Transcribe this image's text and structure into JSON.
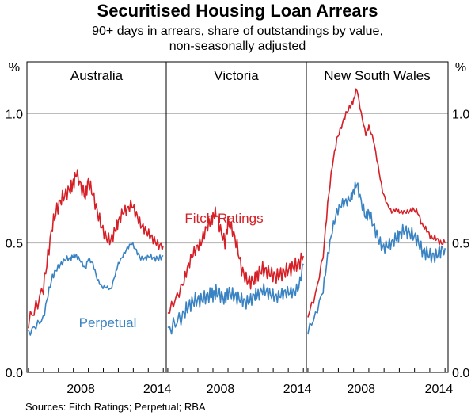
{
  "title": "Securitised Housing Loan Arrears",
  "subtitle_line1": "90+ days in arrears, share of outstandings by value,",
  "subtitle_line2": "non-seasonally adjusted",
  "source": "Sources: Fitch Ratings; Perpetual; RBA",
  "colors": {
    "fitch": "#d62027",
    "perpetual": "#3a83c3",
    "grid": "#b3b3b3",
    "axis": "#000000"
  },
  "chart_data": {
    "type": "line",
    "y_unit_label": "%",
    "ylim": [
      0,
      1.2
    ],
    "y_ticks": [
      "0.0",
      "0.5",
      "1.0"
    ],
    "y_tick_values": [
      0,
      0.5,
      1.0
    ],
    "xlim": [
      2004.9,
      2014.2
    ],
    "x_ticks": [
      "2008",
      "2014"
    ],
    "x_tick_values": [
      2008,
      2014
    ],
    "series_labels": [
      {
        "name": "Fitch Ratings",
        "panel": 1
      },
      {
        "name": "Perpetual",
        "panel": 0
      }
    ],
    "panels": [
      {
        "name": "Australia",
        "series": [
          {
            "name": "Fitch Ratings",
            "x": [
              2005.0,
              2005.5,
              2006.0,
              2006.3,
              2006.6,
              2006.9,
              2007.2,
              2007.5,
              2007.8,
              2008.0,
              2008.2,
              2008.5,
              2008.8,
              2009.0,
              2009.3,
              2009.6,
              2009.9,
              2010.2,
              2010.5,
              2010.8,
              2011.0,
              2011.3,
              2011.6,
              2011.9,
              2012.2,
              2012.5,
              2012.8,
              2013.1,
              2013.4,
              2013.7,
              2014.0
            ],
            "values": [
              0.2,
              0.25,
              0.33,
              0.45,
              0.57,
              0.63,
              0.67,
              0.69,
              0.71,
              0.73,
              0.77,
              0.72,
              0.68,
              0.74,
              0.69,
              0.62,
              0.56,
              0.52,
              0.51,
              0.55,
              0.58,
              0.62,
              0.63,
              0.65,
              0.61,
              0.57,
              0.55,
              0.53,
              0.51,
              0.49,
              0.49
            ]
          },
          {
            "name": "Perpetual",
            "x": [
              2005.0,
              2005.5,
              2006.0,
              2006.3,
              2006.6,
              2006.9,
              2007.2,
              2007.5,
              2007.8,
              2008.0,
              2008.2,
              2008.5,
              2008.8,
              2009.0,
              2009.3,
              2009.6,
              2009.9,
              2010.2,
              2010.5,
              2010.8,
              2011.0,
              2011.3,
              2011.6,
              2011.9,
              2012.2,
              2012.5,
              2012.8,
              2013.1,
              2013.4,
              2013.7,
              2014.0
            ],
            "values": [
              0.15,
              0.18,
              0.21,
              0.3,
              0.37,
              0.4,
              0.42,
              0.44,
              0.44,
              0.45,
              0.45,
              0.43,
              0.4,
              0.44,
              0.42,
              0.36,
              0.33,
              0.33,
              0.32,
              0.38,
              0.42,
              0.45,
              0.48,
              0.5,
              0.47,
              0.44,
              0.44,
              0.45,
              0.44,
              0.44,
              0.45
            ]
          }
        ]
      },
      {
        "name": "Victoria",
        "series": [
          {
            "name": "Fitch Ratings",
            "x": [
              2005.0,
              2005.5,
              2006.0,
              2006.3,
              2006.6,
              2006.9,
              2007.2,
              2007.5,
              2007.8,
              2008.0,
              2008.2,
              2008.5,
              2008.8,
              2009.0,
              2009.3,
              2009.6,
              2009.9,
              2010.2,
              2010.5,
              2010.8,
              2011.0,
              2011.3,
              2011.6,
              2011.9,
              2012.2,
              2012.5,
              2012.8,
              2013.1,
              2013.4,
              2013.7,
              2014.0
            ],
            "values": [
              0.23,
              0.28,
              0.34,
              0.4,
              0.45,
              0.48,
              0.5,
              0.55,
              0.58,
              0.6,
              0.62,
              0.55,
              0.5,
              0.58,
              0.55,
              0.49,
              0.4,
              0.36,
              0.35,
              0.36,
              0.38,
              0.4,
              0.39,
              0.38,
              0.37,
              0.38,
              0.39,
              0.4,
              0.41,
              0.42,
              0.45
            ]
          },
          {
            "name": "Perpetual",
            "x": [
              2005.0,
              2005.5,
              2006.0,
              2006.3,
              2006.6,
              2006.9,
              2007.2,
              2007.5,
              2007.8,
              2008.0,
              2008.2,
              2008.5,
              2008.8,
              2009.0,
              2009.3,
              2009.6,
              2009.9,
              2010.2,
              2010.5,
              2010.8,
              2011.0,
              2011.3,
              2011.6,
              2011.9,
              2012.2,
              2012.5,
              2012.8,
              2013.1,
              2013.4,
              2013.7,
              2014.0
            ],
            "values": [
              0.16,
              0.19,
              0.22,
              0.25,
              0.27,
              0.28,
              0.28,
              0.29,
              0.3,
              0.3,
              0.31,
              0.3,
              0.28,
              0.31,
              0.3,
              0.29,
              0.28,
              0.27,
              0.28,
              0.3,
              0.3,
              0.32,
              0.31,
              0.3,
              0.29,
              0.3,
              0.31,
              0.31,
              0.31,
              0.33,
              0.42
            ]
          }
        ]
      },
      {
        "name": "New South Wales",
        "series": [
          {
            "name": "Fitch Ratings",
            "x": [
              2005.0,
              2005.5,
              2006.0,
              2006.3,
              2006.6,
              2006.9,
              2007.2,
              2007.5,
              2007.8,
              2008.0,
              2008.2,
              2008.5,
              2008.8,
              2009.0,
              2009.3,
              2009.6,
              2009.9,
              2010.2,
              2010.5,
              2010.8,
              2011.0,
              2011.3,
              2011.6,
              2011.9,
              2012.2,
              2012.5,
              2012.8,
              2013.1,
              2013.4,
              2013.7,
              2014.0
            ],
            "values": [
              0.22,
              0.3,
              0.45,
              0.65,
              0.8,
              0.9,
              0.95,
              1.0,
              1.03,
              1.05,
              1.1,
              1.0,
              0.92,
              0.95,
              0.9,
              0.8,
              0.7,
              0.65,
              0.62,
              0.63,
              0.62,
              0.62,
              0.62,
              0.63,
              0.62,
              0.57,
              0.55,
              0.52,
              0.52,
              0.5,
              0.5
            ]
          },
          {
            "name": "Perpetual",
            "x": [
              2005.0,
              2005.5,
              2006.0,
              2006.3,
              2006.6,
              2006.9,
              2007.2,
              2007.5,
              2007.8,
              2008.0,
              2008.2,
              2008.5,
              2008.8,
              2009.0,
              2009.3,
              2009.6,
              2009.9,
              2010.2,
              2010.5,
              2010.8,
              2011.0,
              2011.3,
              2011.6,
              2011.9,
              2012.2,
              2012.5,
              2012.8,
              2013.1,
              2013.4,
              2013.7,
              2014.0
            ],
            "values": [
              0.16,
              0.22,
              0.32,
              0.45,
              0.55,
              0.62,
              0.65,
              0.66,
              0.67,
              0.7,
              0.73,
              0.66,
              0.6,
              0.62,
              0.57,
              0.52,
              0.48,
              0.49,
              0.5,
              0.52,
              0.53,
              0.55,
              0.54,
              0.53,
              0.51,
              0.47,
              0.46,
              0.45,
              0.45,
              0.47,
              0.48
            ]
          }
        ]
      }
    ]
  }
}
